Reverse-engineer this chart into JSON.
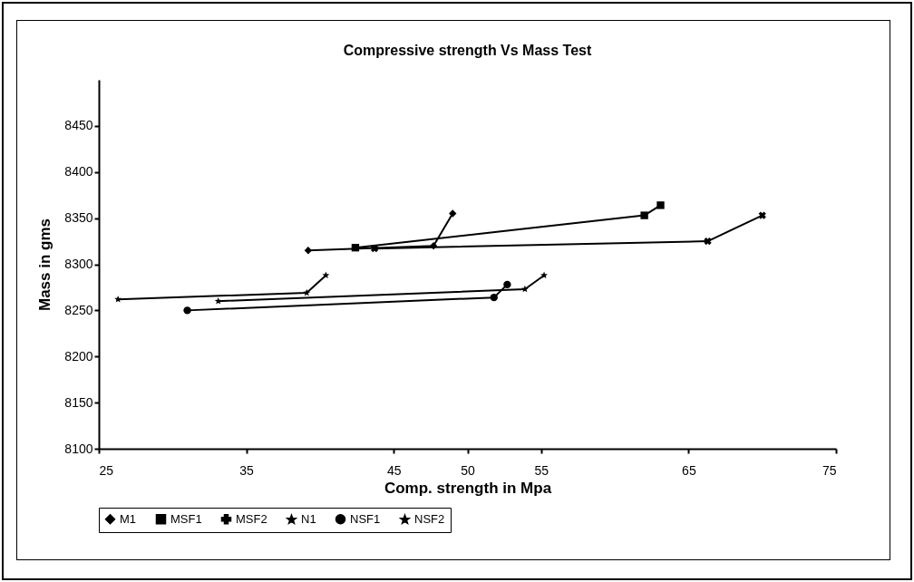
{
  "chart_data": {
    "type": "line",
    "title": "Compressive strength Vs  Mass Test",
    "xlabel": "Comp. strength in Mpa",
    "ylabel": "Mass in gms",
    "xlim": [
      25,
      75
    ],
    "xticks": [
      25,
      35,
      45,
      50,
      55,
      65,
      75
    ],
    "ylim": [
      8100,
      8500
    ],
    "yticks": [
      8100,
      8150,
      8200,
      8250,
      8300,
      8350,
      8400,
      8450
    ],
    "grid": false,
    "legend": "bottom",
    "series": [
      {
        "name": "M1",
        "color": "#000000",
        "marker": "diamond",
        "x": [
          39.2,
          47.7,
          49.0
        ],
        "values": [
          8315,
          8320,
          8355
        ]
      },
      {
        "name": "MSF1",
        "color": "#000000",
        "marker": "square",
        "x": [
          42.4,
          62.0,
          63.1
        ],
        "values": [
          8318,
          8353,
          8364
        ]
      },
      {
        "name": "MSF2",
        "color": "#000000",
        "marker": "cross",
        "x": [
          43.7,
          66.3,
          70.0
        ],
        "values": [
          8317,
          8325,
          8353
        ]
      },
      {
        "name": "N1",
        "color": "#000000",
        "marker": "star",
        "x": [
          26.3,
          39.1,
          40.4
        ],
        "values": [
          8262,
          8269,
          8288
        ]
      },
      {
        "name": "NSF1",
        "color": "#000000",
        "marker": "circle",
        "x": [
          31.0,
          51.8,
          52.7
        ],
        "values": [
          8250,
          8264,
          8278
        ]
      },
      {
        "name": "NSF2",
        "color": "#000000",
        "marker": "star",
        "x": [
          33.1,
          53.9,
          55.2
        ],
        "values": [
          8260,
          8273,
          8288
        ]
      }
    ]
  }
}
